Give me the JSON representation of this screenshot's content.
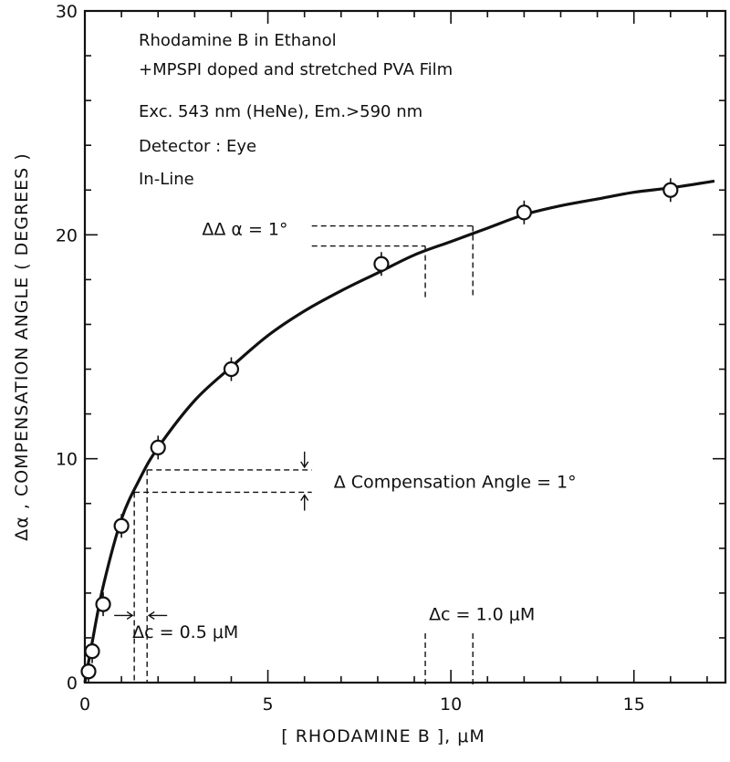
{
  "chart_data": {
    "type": "scatter",
    "title": "",
    "xlabel": "[ RHODAMINE B ], μM",
    "ylabel": "Δα , COMPENSATION ANGLE ( DEGREES )",
    "xlim": [
      0,
      17.5
    ],
    "ylim": [
      0,
      30
    ],
    "x_ticks": [
      "0",
      "5",
      "10",
      "15"
    ],
    "y_ticks": [
      "0",
      "10",
      "20",
      "30"
    ],
    "grid": false,
    "legend_lines": [
      "Rhodamine B in Ethanol",
      "+MPSPI doped and stretched PVA Film",
      "Exc. 543 nm (HeNe), Em.>590 nm",
      "Detector : Eye",
      "In-Line"
    ],
    "points": {
      "x": [
        0.1,
        0.2,
        0.5,
        1.0,
        2.0,
        4.0,
        8.1,
        12.0,
        16.0
      ],
      "y": [
        0.5,
        1.4,
        3.5,
        7.0,
        10.5,
        14.0,
        18.7,
        21.0,
        22.0
      ]
    },
    "fit_curve": {
      "x": [
        0,
        0.2,
        0.5,
        1.0,
        1.5,
        2.0,
        3.0,
        4.0,
        5.0,
        6.0,
        7.0,
        8.0,
        9.0,
        10.0,
        11.0,
        12.0,
        13.0,
        14.0,
        15.0,
        16.0,
        17.2
      ],
      "y": [
        0,
        1.8,
        4.3,
        7.3,
        9.1,
        10.5,
        12.6,
        14.1,
        15.5,
        16.6,
        17.5,
        18.3,
        19.1,
        19.7,
        20.3,
        20.9,
        21.3,
        21.6,
        21.9,
        22.1,
        22.4
      ]
    },
    "annotations": {
      "delta_delta_alpha": "ΔΔ α = 1°",
      "delta_comp_angle": "Δ Compensation Angle = 1°",
      "delta_c_low": "Δc = 0.5 μM",
      "delta_c_high": "Δc = 1.0 μM",
      "low_region": {
        "x1": 1.35,
        "x2": 1.7,
        "y1": 8.5,
        "y2": 9.5,
        "arrow_x": 6.2
      },
      "high_region": {
        "x1": 9.3,
        "x2": 10.6,
        "y1": 19.5,
        "y2": 20.4
      }
    }
  }
}
